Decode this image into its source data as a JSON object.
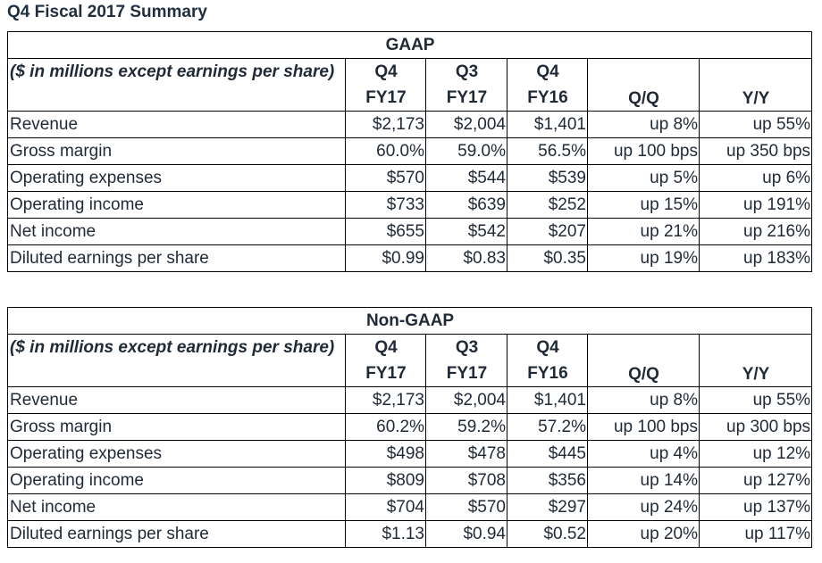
{
  "title": "Q4 Fiscal 2017 Summary",
  "header": {
    "label": "($ in millions except earnings per share)",
    "cols": [
      "Q4\nFY17",
      "Q3\nFY17",
      "Q4\nFY16",
      "Q/Q",
      "Y/Y"
    ],
    "col_lines": [
      [
        "Q4",
        "FY17"
      ],
      [
        "Q3",
        "FY17"
      ],
      [
        "Q4",
        "FY16"
      ],
      [
        "",
        "Q/Q"
      ],
      [
        "",
        "Y/Y"
      ]
    ]
  },
  "tables": [
    {
      "section": "GAAP",
      "rows": [
        [
          "Revenue",
          "$2,173",
          "$2,004",
          "$1,401",
          "up 8%",
          "up 55%"
        ],
        [
          "Gross margin",
          "60.0%",
          "59.0%",
          "56.5%",
          "up 100 bps",
          "up 350 bps"
        ],
        [
          "Operating expenses",
          "$570",
          "$544",
          "$539",
          "up 5%",
          "up 6%"
        ],
        [
          "Operating income",
          "$733",
          "$639",
          "$252",
          "up 15%",
          "up 191%"
        ],
        [
          "Net income",
          "$655",
          "$542",
          "$207",
          "up 21%",
          "up 216%"
        ],
        [
          "Diluted earnings per share",
          "$0.99",
          "$0.83",
          "$0.35",
          "up 19%",
          "up 183%"
        ]
      ]
    },
    {
      "section": "Non-GAAP",
      "rows": [
        [
          "Revenue",
          "$2,173",
          "$2,004",
          "$1,401",
          "up 8%",
          "up 55%"
        ],
        [
          "Gross margin",
          "60.2%",
          "59.2%",
          "57.2%",
          "up 100 bps",
          "up 300 bps"
        ],
        [
          "Operating expenses",
          "$498",
          "$478",
          "$445",
          "up 4%",
          "up 12%"
        ],
        [
          "Operating income",
          "$809",
          "$708",
          "$356",
          "up 14%",
          "up 127%"
        ],
        [
          "Net income",
          "$704",
          "$570",
          "$297",
          "up 24%",
          "up 137%"
        ],
        [
          "Diluted earnings per share",
          "$1.13",
          "$0.94",
          "$0.52",
          "up 20%",
          "up 117%"
        ]
      ]
    }
  ]
}
